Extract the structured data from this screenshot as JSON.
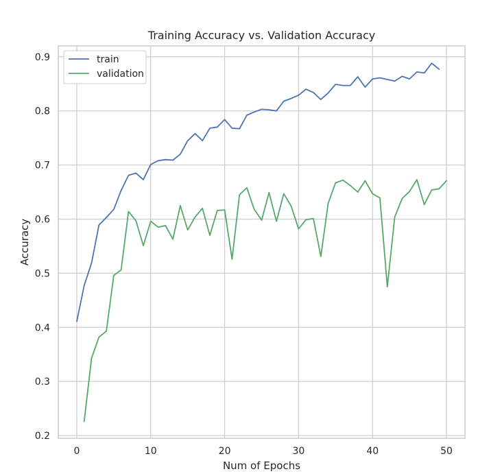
{
  "chart_data": {
    "type": "line",
    "title": "Training Accuracy vs. Validation Accuracy",
    "xlabel": "Num of Epochs",
    "ylabel": "Accuracy",
    "xlim": [
      -2.5,
      52.5
    ],
    "ylim": [
      0.195,
      0.92
    ],
    "xticks": [
      0,
      10,
      20,
      30,
      40,
      50
    ],
    "yticks": [
      0.2,
      0.3,
      0.4,
      0.5,
      0.6,
      0.7,
      0.8,
      0.9
    ],
    "xtick_labels": [
      "0",
      "10",
      "20",
      "30",
      "40",
      "50"
    ],
    "ytick_labels": [
      "0.2",
      "0.3",
      "0.4",
      "0.5",
      "0.6",
      "0.7",
      "0.8",
      "0.9"
    ],
    "grid": true,
    "legend_position": "top-left",
    "series": [
      {
        "name": "train",
        "color": "#4c72b0",
        "x": [
          0,
          1,
          2,
          3,
          4,
          5,
          6,
          7,
          8,
          9,
          10,
          11,
          12,
          13,
          14,
          15,
          16,
          17,
          18,
          19,
          20,
          21,
          22,
          23,
          24,
          25,
          26,
          27,
          28,
          29,
          30,
          31,
          32,
          33,
          34,
          35,
          36,
          37,
          38,
          39,
          40,
          41,
          42,
          43,
          44,
          45,
          46,
          47,
          48,
          49
        ],
        "values": [
          0.411,
          0.477,
          0.519,
          0.589,
          0.603,
          0.618,
          0.653,
          0.681,
          0.685,
          0.673,
          0.701,
          0.708,
          0.71,
          0.709,
          0.72,
          0.745,
          0.758,
          0.745,
          0.768,
          0.77,
          0.784,
          0.768,
          0.767,
          0.792,
          0.798,
          0.803,
          0.802,
          0.8,
          0.818,
          0.823,
          0.829,
          0.84,
          0.834,
          0.821,
          0.833,
          0.849,
          0.847,
          0.847,
          0.863,
          0.844,
          0.859,
          0.861,
          0.858,
          0.855,
          0.864,
          0.859,
          0.872,
          0.87,
          0.888,
          0.877
        ]
      },
      {
        "name": "validation",
        "color": "#55a868",
        "x": [
          1,
          2,
          3,
          4,
          5,
          6,
          7,
          8,
          9,
          10,
          11,
          12,
          13,
          14,
          15,
          16,
          17,
          18,
          19,
          20,
          21,
          22,
          23,
          24,
          25,
          26,
          27,
          28,
          29,
          30,
          31,
          32,
          33,
          34,
          35,
          36,
          37,
          38,
          39,
          40,
          41,
          42,
          43,
          44,
          45,
          46,
          47,
          48,
          49,
          50
        ],
        "values": [
          0.226,
          0.343,
          0.382,
          0.393,
          0.496,
          0.506,
          0.614,
          0.597,
          0.551,
          0.596,
          0.585,
          0.588,
          0.563,
          0.625,
          0.58,
          0.604,
          0.62,
          0.57,
          0.616,
          0.617,
          0.526,
          0.645,
          0.658,
          0.618,
          0.598,
          0.649,
          0.596,
          0.647,
          0.624,
          0.582,
          0.599,
          0.601,
          0.531,
          0.629,
          0.667,
          0.672,
          0.662,
          0.65,
          0.671,
          0.647,
          0.639,
          0.475,
          0.604,
          0.638,
          0.651,
          0.673,
          0.627,
          0.654,
          0.656,
          0.671
        ]
      }
    ]
  }
}
